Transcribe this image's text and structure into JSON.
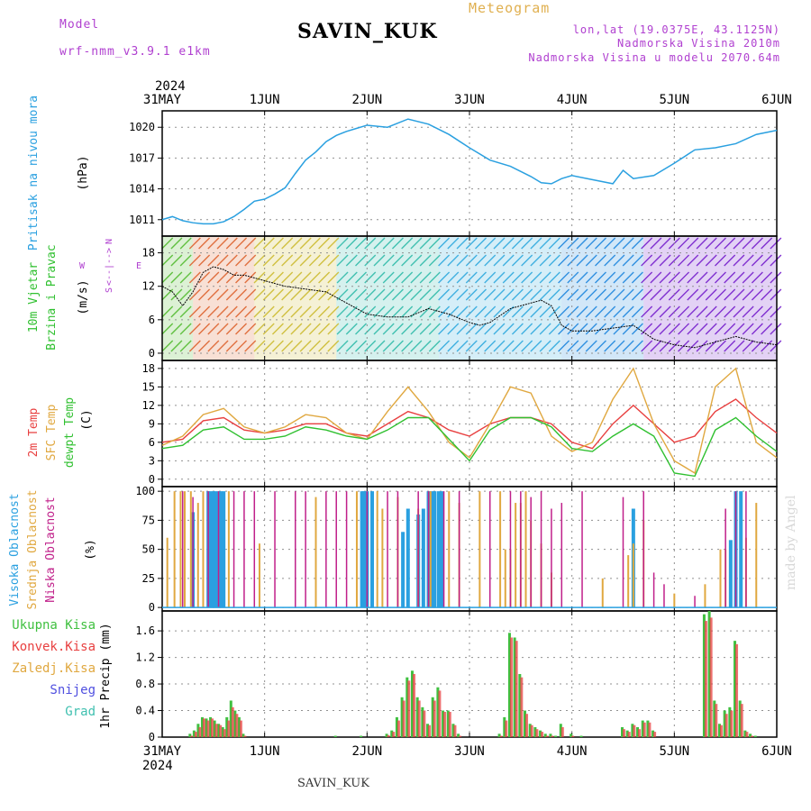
{
  "header": {
    "model_label": "Model",
    "model_name": "wrf-nmm_v3.9.1 e1km",
    "station": "SAVIN_KUK",
    "product": "Meteogram",
    "lonlat": "lon,lat (19.0375E, 43.1125N)",
    "altitude": "Nadmorska Visina 2010m",
    "model_altitude": "Nadmorska Visina u modelu 2070.64m",
    "footer_station": "SAVIN_KUK",
    "watermark": "made by Angel"
  },
  "colors": {
    "pressure": "#2aa0e0",
    "temp2m": "#e84040",
    "sfc_temp": "#e0a840",
    "dewpt": "#30c030",
    "high_cloud": "#2aa0e0",
    "mid_cloud": "#e0a840",
    "low_cloud": "#c0208a",
    "total_precip": "#40c040",
    "conv_precip": "#e84040",
    "grid": "#909090"
  },
  "chart_data": [
    {
      "type": "line",
      "id": "pressure",
      "ylabel_lines": [
        "Pritisak na nivou mora"
      ],
      "unit": "(hPa)",
      "ylim": [
        1009.4,
        1021.6
      ],
      "yticks": [
        1011,
        1014,
        1017,
        1020
      ],
      "x_date_labels": [
        "31MAY",
        "1JUN",
        "2JUN",
        "3JUN",
        "4JUN",
        "5JUN",
        "6JUN"
      ],
      "year": "2024",
      "x_days": [
        0,
        0.1,
        0.2,
        0.3,
        0.4,
        0.5,
        0.6,
        0.7,
        0.8,
        0.9,
        1.0,
        1.1,
        1.2,
        1.3,
        1.4,
        1.5,
        1.6,
        1.7,
        1.8,
        1.9,
        2.0,
        2.2,
        2.4,
        2.6,
        2.8,
        3.0,
        3.2,
        3.4,
        3.6,
        3.7,
        3.8,
        3.9,
        4.0,
        4.2,
        4.4,
        4.5,
        4.6,
        4.8,
        5.0,
        5.2,
        5.4,
        5.6,
        5.8,
        6.0
      ],
      "series": [
        {
          "values": [
            1011.0,
            1011.3,
            1010.9,
            1010.7,
            1010.6,
            1010.6,
            1010.8,
            1011.3,
            1012.0,
            1012.8,
            1013.0,
            1013.5,
            1014.1,
            1015.5,
            1016.8,
            1017.6,
            1018.6,
            1019.2,
            1019.6,
            1019.9,
            1020.2,
            1020.0,
            1020.8,
            1020.3,
            1019.3,
            1018.0,
            1016.8,
            1016.2,
            1015.2,
            1014.6,
            1014.5,
            1015.0,
            1015.3,
            1014.9,
            1014.5,
            1015.8,
            1015.0,
            1015.3,
            1016.5,
            1017.8,
            1018.0,
            1018.4,
            1019.3,
            1019.7
          ]
        }
      ]
    },
    {
      "type": "line",
      "id": "wind",
      "ylabel_lines": [
        "10m Vjetar",
        "Brzina i Pravac"
      ],
      "unit": "(m/s)",
      "compass": {
        "n": "N",
        "w": "W",
        "e": "E",
        "s": "S"
      },
      "ylim": [
        -1.3,
        21.0
      ],
      "yticks": [
        0,
        6,
        12,
        18
      ],
      "x_days": [
        0,
        0.1,
        0.2,
        0.3,
        0.4,
        0.5,
        0.6,
        0.7,
        0.8,
        0.9,
        1.0,
        1.2,
        1.4,
        1.6,
        1.8,
        2.0,
        2.2,
        2.4,
        2.6,
        2.8,
        3.0,
        3.1,
        3.2,
        3.4,
        3.6,
        3.7,
        3.8,
        3.9,
        4.0,
        4.2,
        4.4,
        4.6,
        4.8,
        5.0,
        5.2,
        5.4,
        5.6,
        5.8,
        6.0
      ],
      "series": [
        {
          "name_hidden": "speed",
          "values": [
            12,
            11,
            8.5,
            11,
            14.5,
            15.5,
            15,
            14,
            14,
            13.5,
            13,
            12,
            11.5,
            11,
            9,
            7,
            6.5,
            6.5,
            8,
            7,
            5.5,
            5,
            5.5,
            8,
            9,
            9.5,
            8.5,
            5,
            4,
            4,
            4.5,
            5,
            2.5,
            1.5,
            1,
            2,
            3,
            2,
            1.5
          ]
        }
      ]
    },
    {
      "type": "line",
      "id": "temperature",
      "ylabel_lines": [
        "2m Temp",
        "SFC Temp",
        "dewpt Temp"
      ],
      "unit": "(C)",
      "ylim": [
        -1.2,
        19.3
      ],
      "yticks": [
        0,
        3,
        6,
        9,
        12,
        15,
        18
      ],
      "x_days": [
        0,
        0.2,
        0.4,
        0.6,
        0.8,
        1.0,
        1.2,
        1.4,
        1.6,
        1.8,
        2.0,
        2.2,
        2.4,
        2.6,
        2.8,
        3.0,
        3.2,
        3.4,
        3.6,
        3.8,
        4.0,
        4.2,
        4.4,
        4.6,
        4.8,
        5.0,
        5.2,
        5.4,
        5.6,
        5.8,
        6.0
      ],
      "series": [
        {
          "name": "2m Temp",
          "values": [
            6,
            6.5,
            9.5,
            10,
            8,
            7.5,
            8,
            9,
            9,
            7.5,
            7,
            9,
            11,
            10,
            8,
            7,
            9,
            10,
            10,
            9,
            6,
            5,
            9,
            12,
            9,
            6,
            7,
            11,
            13,
            10,
            7.5
          ]
        },
        {
          "name": "SFC Temp",
          "values": [
            5.5,
            7,
            10.5,
            11.5,
            8.5,
            7.5,
            8.5,
            10.5,
            10,
            7.5,
            6.5,
            11,
            15,
            11,
            6,
            3.5,
            9,
            15,
            14,
            7,
            4.5,
            6,
            13,
            18,
            9,
            3,
            1,
            15,
            18,
            6,
            3.5
          ]
        },
        {
          "name": "dewpt Temp",
          "values": [
            5,
            5.5,
            8,
            8.5,
            6.5,
            6.5,
            7,
            8.5,
            8,
            7,
            6.5,
            8,
            10,
            10,
            6.5,
            3,
            8,
            10,
            10,
            8.5,
            5,
            4.5,
            7,
            9,
            7,
            1,
            0.5,
            8,
            10,
            7,
            4.5
          ]
        }
      ]
    },
    {
      "type": "bar",
      "id": "clouds",
      "ylabel_lines": [
        "Visoka Oblacnost",
        "Srednja Oblacnost",
        "Niska Oblacnost"
      ],
      "unit": "(%)",
      "ylim": [
        -3,
        104
      ],
      "yticks": [
        0,
        25,
        50,
        75,
        100
      ],
      "series": [
        {
          "name": "Visoka Oblacnost",
          "x_days": [
            0.3,
            0.45,
            0.47,
            0.5,
            0.52,
            0.55,
            0.57,
            0.6,
            1.95,
            1.97,
            2.0,
            2.05,
            2.35,
            2.4,
            2.5,
            2.55,
            2.6,
            2.63,
            2.66,
            2.7,
            2.73,
            4.6,
            5.55,
            5.6,
            5.65
          ],
          "values": [
            82,
            100,
            100,
            100,
            100,
            100,
            100,
            100,
            100,
            100,
            100,
            100,
            65,
            85,
            80,
            85,
            100,
            100,
            100,
            100,
            100,
            85,
            58,
            100,
            100
          ]
        },
        {
          "name": "Srednja Oblacnost",
          "x_days": [
            0.05,
            0.12,
            0.18,
            0.22,
            0.28,
            0.35,
            0.4,
            0.65,
            0.95,
            1.5,
            1.9,
            2.1,
            2.15,
            2.3,
            2.5,
            2.62,
            2.8,
            2.9,
            3.1,
            3.3,
            3.35,
            3.4,
            3.45,
            3.5,
            3.55,
            3.6,
            3.7,
            3.8,
            4.3,
            4.55,
            4.6,
            4.7,
            5.0,
            5.3,
            5.45,
            5.5,
            5.7,
            5.8
          ],
          "values": [
            60,
            100,
            100,
            100,
            100,
            90,
            100,
            100,
            55,
            95,
            100,
            100,
            85,
            95,
            85,
            100,
            100,
            90,
            100,
            100,
            50,
            50,
            90,
            90,
            100,
            75,
            55,
            30,
            25,
            45,
            55,
            75,
            12,
            20,
            50,
            50,
            60,
            90
          ]
        },
        {
          "name": "Niska Oblacnost",
          "x_days": [
            0.2,
            0.3,
            0.45,
            0.55,
            0.7,
            0.8,
            0.9,
            1.1,
            1.3,
            1.4,
            1.6,
            1.7,
            1.8,
            2.0,
            2.2,
            2.3,
            2.5,
            2.6,
            2.75,
            2.9,
            3.2,
            3.4,
            3.5,
            3.6,
            3.7,
            3.8,
            3.9,
            4.1,
            4.5,
            4.7,
            4.8,
            4.9,
            5.2,
            5.5,
            5.6,
            5.7
          ],
          "values": [
            100,
            95,
            100,
            100,
            100,
            100,
            100,
            100,
            100,
            100,
            100,
            100,
            100,
            100,
            100,
            100,
            100,
            100,
            100,
            100,
            100,
            100,
            100,
            95,
            100,
            85,
            90,
            100,
            95,
            100,
            30,
            20,
            10,
            85,
            100,
            100
          ]
        }
      ]
    },
    {
      "type": "bar",
      "id": "precip",
      "ylabel_lines": [
        "1hr Precip (mm)"
      ],
      "legend": [
        "Ukupna Kisa",
        "Konvek.Kisa",
        "Zaledj.Kisa",
        "Snijeg",
        "Grad"
      ],
      "ylim": [
        0,
        1.9
      ],
      "yticks": [
        0,
        0.4,
        0.8,
        1.2,
        1.6
      ],
      "x_days": [
        0.28,
        0.32,
        0.36,
        0.4,
        0.44,
        0.48,
        0.52,
        0.56,
        0.6,
        0.64,
        0.68,
        0.72,
        0.76,
        0.8,
        1.7,
        1.95,
        2.2,
        2.25,
        2.3,
        2.35,
        2.4,
        2.45,
        2.5,
        2.55,
        2.6,
        2.65,
        2.7,
        2.75,
        2.8,
        2.85,
        2.9,
        3.3,
        3.35,
        3.4,
        3.45,
        3.5,
        3.55,
        3.6,
        3.65,
        3.7,
        3.75,
        3.8,
        3.85,
        3.9,
        4.0,
        4.1,
        4.5,
        4.55,
        4.6,
        4.65,
        4.7,
        4.75,
        4.8,
        5.3,
        5.35,
        5.4,
        5.45,
        5.5,
        5.55,
        5.6,
        5.65,
        5.7,
        5.75,
        5.8
      ],
      "series": [
        {
          "name": "Ukupna Kisa",
          "values": [
            0.05,
            0.1,
            0.2,
            0.3,
            0.28,
            0.3,
            0.25,
            0.2,
            0.15,
            0.3,
            0.55,
            0.4,
            0.3,
            0.05,
            0.02,
            0.02,
            0.05,
            0.1,
            0.3,
            0.6,
            0.9,
            1.0,
            0.6,
            0.45,
            0.2,
            0.6,
            0.75,
            0.4,
            0.4,
            0.2,
            0.05,
            0.05,
            0.3,
            1.57,
            1.5,
            0.95,
            0.4,
            0.2,
            0.15,
            0.1,
            0.05,
            0.05,
            0.02,
            0.2,
            0.05,
            0.02,
            0.15,
            0.1,
            0.2,
            0.15,
            0.25,
            0.25,
            0.1,
            1.85,
            1.9,
            0.55,
            0.2,
            0.4,
            0.45,
            1.45,
            0.55,
            0.1,
            0.05,
            0.02
          ]
        },
        {
          "name": "Konvek.Kisa",
          "values": [
            0.02,
            0.08,
            0.15,
            0.28,
            0.25,
            0.28,
            0.2,
            0.18,
            0.12,
            0.25,
            0.45,
            0.35,
            0.25,
            0.02,
            0.0,
            0.0,
            0.03,
            0.08,
            0.25,
            0.55,
            0.85,
            0.95,
            0.55,
            0.4,
            0.18,
            0.55,
            0.7,
            0.38,
            0.38,
            0.18,
            0.02,
            0.02,
            0.25,
            1.5,
            1.45,
            0.9,
            0.35,
            0.18,
            0.12,
            0.08,
            0.02,
            0.02,
            0.0,
            0.15,
            0.02,
            0.0,
            0.12,
            0.08,
            0.18,
            0.12,
            0.22,
            0.22,
            0.08,
            1.75,
            1.8,
            0.5,
            0.18,
            0.35,
            0.4,
            1.4,
            0.5,
            0.08,
            0.02,
            0.0
          ]
        }
      ]
    }
  ]
}
